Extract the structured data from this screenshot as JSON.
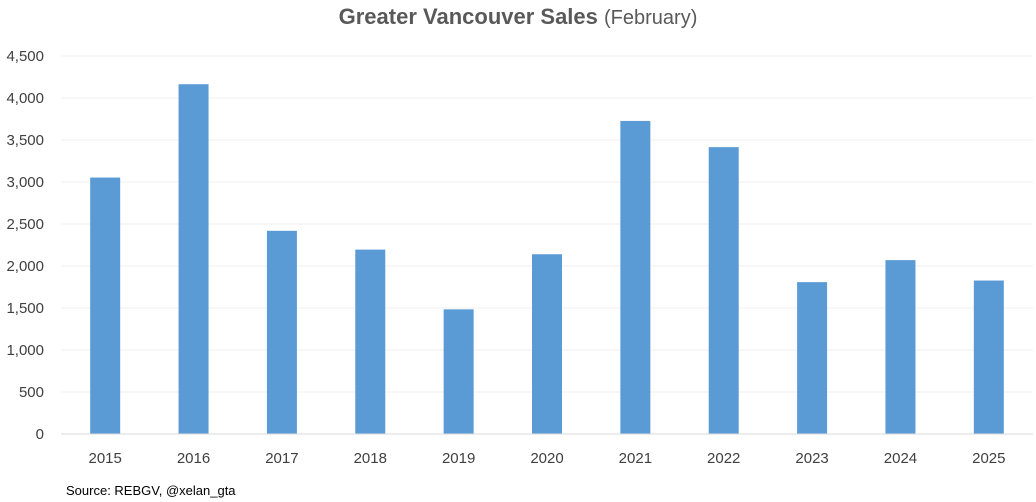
{
  "chart_data": {
    "type": "bar",
    "title": "Greater Vancouver Sales",
    "subtitle": "(February)",
    "categories": [
      "2015",
      "2016",
      "2017",
      "2018",
      "2019",
      "2020",
      "2021",
      "2022",
      "2023",
      "2024",
      "2025"
    ],
    "values": [
      3053,
      4164,
      2419,
      2195,
      1484,
      2140,
      3727,
      3415,
      1808,
      2070,
      1827
    ],
    "ylim": [
      0,
      4500
    ],
    "ytick_step": 500,
    "ytick_labels": [
      "0",
      "500",
      "1,000",
      "1,500",
      "2,000",
      "2,500",
      "3,000",
      "3,500",
      "4,000",
      "4,500"
    ],
    "xlabel": "",
    "ylabel": "",
    "grid": true,
    "legend": "none",
    "bar_color": "#5B9BD5"
  },
  "source": "Source: REBGV, @xelan_gta"
}
